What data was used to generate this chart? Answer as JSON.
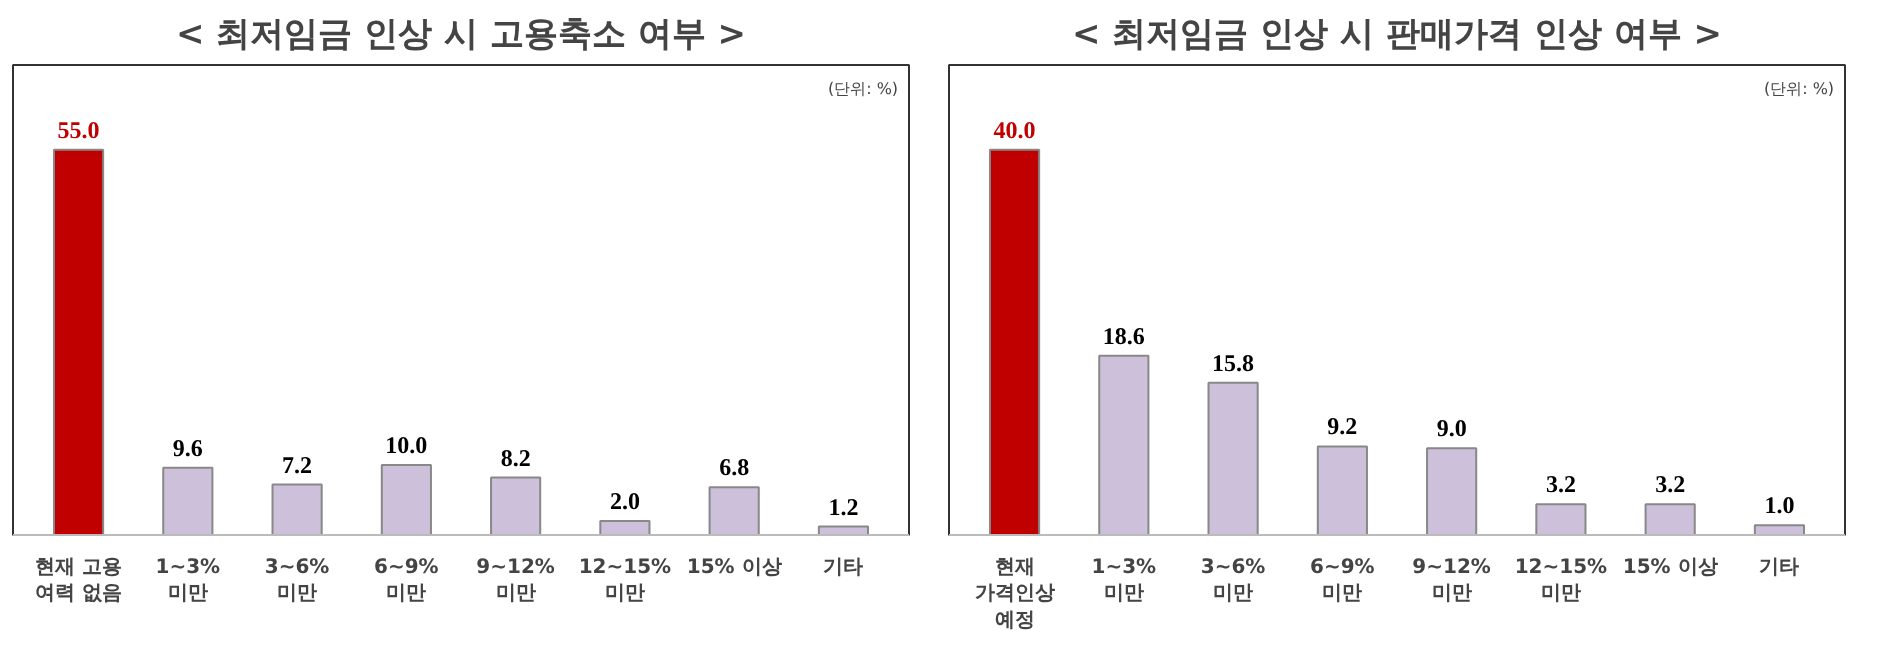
{
  "chart_data": [
    {
      "type": "bar",
      "title": "< 최저임금 인상 시 고용축소 여부 >",
      "annotations": [
        "(단위: %)"
      ],
      "categories": [
        "현재 고용\n여력 없음",
        "1~3%\n미만",
        "3~6%\n미만",
        "6~9%\n미만",
        "9~12%\n미만",
        "12~15%\n미만",
        "15% 이상",
        "기타"
      ],
      "values": [
        55.0,
        9.6,
        7.2,
        10.0,
        8.2,
        2.0,
        6.8,
        1.2
      ],
      "value_labels": [
        "55.0",
        "9.6",
        "7.2",
        "10.0",
        "8.2",
        "2.0",
        "6.8",
        "1.2"
      ],
      "colors": [
        "#c00000",
        "#ccc0da",
        "#ccc0da",
        "#ccc0da",
        "#ccc0da",
        "#ccc0da",
        "#ccc0da",
        "#ccc0da"
      ]
    },
    {
      "type": "bar",
      "title": "< 최저임금 인상 시 판매가격 인상 여부 >",
      "annotations": [
        "(단위: %)"
      ],
      "categories": [
        "현재\n가격인상\n예정",
        "1~3%\n미만",
        "3~6%\n미만",
        "6~9%\n미만",
        "9~12%\n미만",
        "12~15%\n미만",
        "15% 이상",
        "기타"
      ],
      "values": [
        40.0,
        18.6,
        15.8,
        9.2,
        9.0,
        3.2,
        3.2,
        1.0
      ],
      "value_labels": [
        "40.0",
        "18.6",
        "15.8",
        "9.2",
        "9.0",
        "3.2",
        "3.2",
        "1.0"
      ],
      "colors": [
        "#c00000",
        "#ccc0da",
        "#ccc0da",
        "#ccc0da",
        "#ccc0da",
        "#ccc0da",
        "#ccc0da",
        "#ccc0da"
      ]
    }
  ]
}
